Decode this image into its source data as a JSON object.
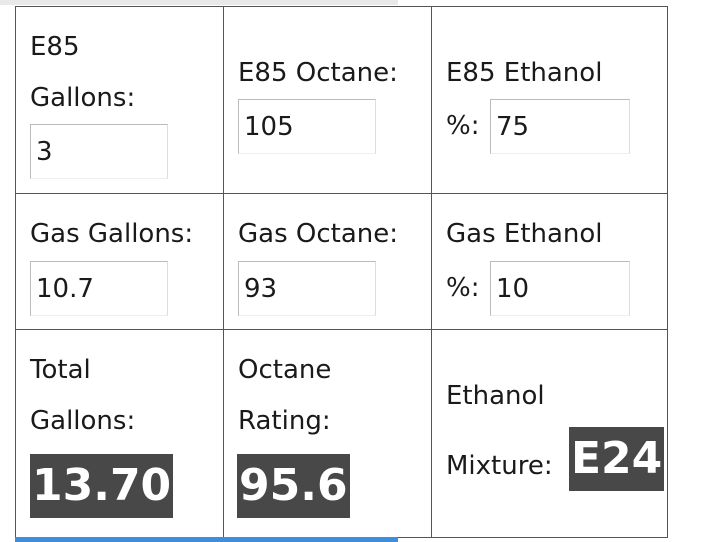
{
  "table": {
    "rows": [
      [
        {
          "label_lines": [
            "E85",
            "Gallons:"
          ],
          "value": "3"
        },
        {
          "label_lines": [
            "E85 Octane:"
          ],
          "value": "105"
        },
        {
          "label_lines": [
            "E85 Ethanol",
            "%:"
          ],
          "value": "75"
        }
      ],
      [
        {
          "label_lines": [
            "Gas Gallons:"
          ],
          "value": "10.7"
        },
        {
          "label_lines": [
            "Gas Octane:"
          ],
          "value": "93"
        },
        {
          "label_lines": [
            "Gas Ethanol",
            "%:"
          ],
          "value": "10"
        }
      ],
      [
        {
          "label_lines": [
            "Total",
            "Gallons:"
          ],
          "value": "13.70"
        },
        {
          "label_lines": [
            "Octane",
            "Rating:"
          ],
          "value": "95.6"
        },
        {
          "label_lines": [
            "Ethanol",
            "Mixture:"
          ],
          "value": "E24"
        }
      ]
    ]
  }
}
